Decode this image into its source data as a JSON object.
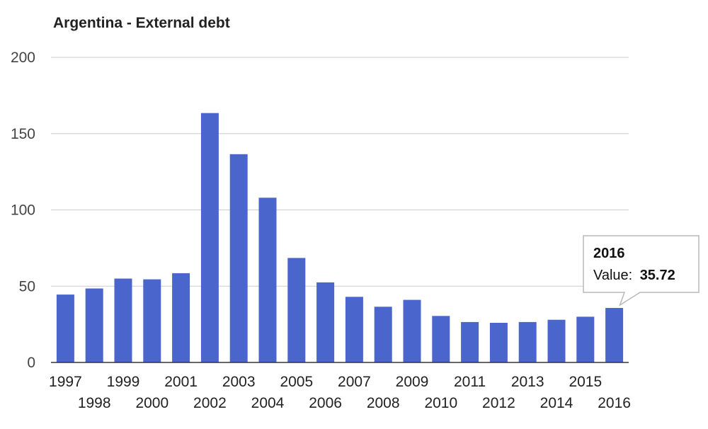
{
  "chart_data": {
    "type": "bar",
    "title": "Argentina - External debt",
    "categories": [
      "1997",
      "1998",
      "1999",
      "2000",
      "2001",
      "2002",
      "2003",
      "2004",
      "2005",
      "2006",
      "2007",
      "2008",
      "2009",
      "2010",
      "2011",
      "2012",
      "2013",
      "2014",
      "2015",
      "2016"
    ],
    "values": [
      44.5,
      48.5,
      55,
      54.5,
      58.5,
      163.5,
      136.5,
      108,
      68.5,
      52.5,
      43,
      36.5,
      41,
      30.5,
      26.5,
      26,
      26.5,
      28,
      30,
      35.72
    ],
    "ylim": [
      0,
      200
    ],
    "yticks": [
      0,
      50,
      100,
      150,
      200
    ],
    "grid": true,
    "legend": "none",
    "bar_color": "#4a66cc",
    "tooltip": {
      "category": "2016",
      "label": "Value:",
      "value": "35.72"
    }
  }
}
